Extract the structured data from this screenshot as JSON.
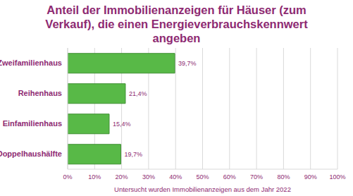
{
  "chart_data": {
    "type": "bar",
    "title": "Anteil der Immobilienanzeigen für Häuser (zum Verkauf), die einen Energieverbrauchskennwert angeben",
    "x_label": "Untersucht wurden Immobilienanzeigen aus dem Jahr 2022",
    "orientation": "horizontal",
    "categories": [
      "Zweifamilienhaus",
      "Reihenhaus",
      "Einfamilienhaus",
      "Doppelhaushälfte"
    ],
    "values": [
      39.7,
      21.4,
      15.4,
      19.7
    ],
    "value_labels": [
      "39,7%",
      "21,4%",
      "15,4%",
      "19,7%"
    ],
    "data_labels": true,
    "color": "#58b947",
    "xlim": [
      0,
      100
    ],
    "xticks": [
      {
        "value": 0,
        "label": "0%"
      },
      {
        "value": 10,
        "label": "10%"
      },
      {
        "value": 20,
        "label": "20%"
      },
      {
        "value": 30,
        "label": "30%"
      },
      {
        "value": 40,
        "label": "40%"
      },
      {
        "value": 50,
        "label": "50%"
      },
      {
        "value": 60,
        "label": "60%"
      },
      {
        "value": 70,
        "label": "70%"
      },
      {
        "value": 80,
        "label": "80%"
      },
      {
        "value": 90,
        "label": "90%"
      },
      {
        "value": 100,
        "label": "100%"
      }
    ],
    "grid": true
  }
}
